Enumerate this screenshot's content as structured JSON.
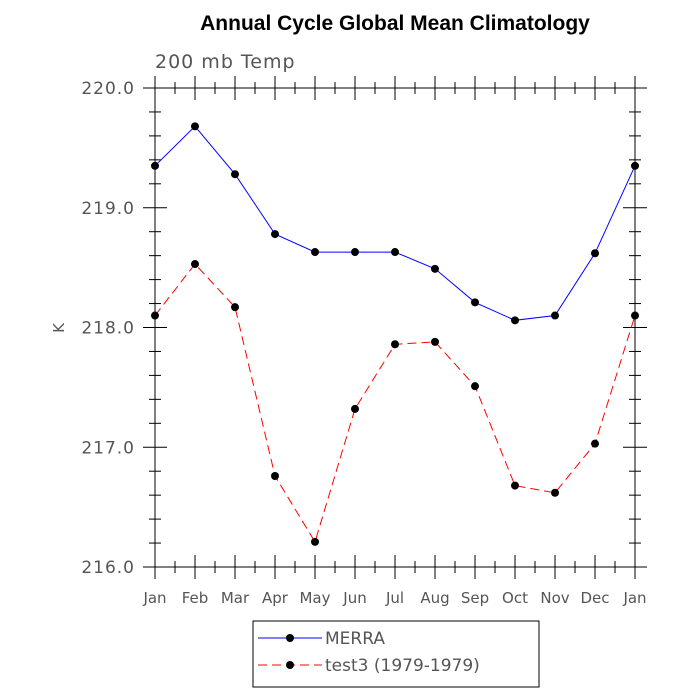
{
  "chart_data": {
    "type": "line",
    "title": "Annual Cycle Global Mean Climatology",
    "subtitle": "200 mb Temp",
    "xlabel": "",
    "ylabel": "K",
    "categories": [
      "Jan",
      "Feb",
      "Mar",
      "Apr",
      "May",
      "Jun",
      "Jul",
      "Aug",
      "Sep",
      "Oct",
      "Nov",
      "Dec",
      "Jan"
    ],
    "ylim": [
      216.0,
      220.0
    ],
    "yticks": [
      "216.0",
      "217.0",
      "218.0",
      "219.0",
      "220.0"
    ],
    "grid": false,
    "legend_position": "bottom",
    "series": [
      {
        "name": "MERRA",
        "color": "#0000ff",
        "dash": "solid",
        "values": [
          219.35,
          219.68,
          219.28,
          218.78,
          218.63,
          218.63,
          218.63,
          218.49,
          218.21,
          218.06,
          218.1,
          218.62,
          219.35
        ]
      },
      {
        "name": "test3 (1979-1979)",
        "color": "#ff0000",
        "dash": "dashed",
        "values": [
          218.1,
          218.53,
          218.17,
          216.76,
          216.21,
          217.32,
          217.86,
          217.88,
          217.51,
          216.68,
          216.62,
          217.03,
          218.1
        ]
      }
    ]
  }
}
